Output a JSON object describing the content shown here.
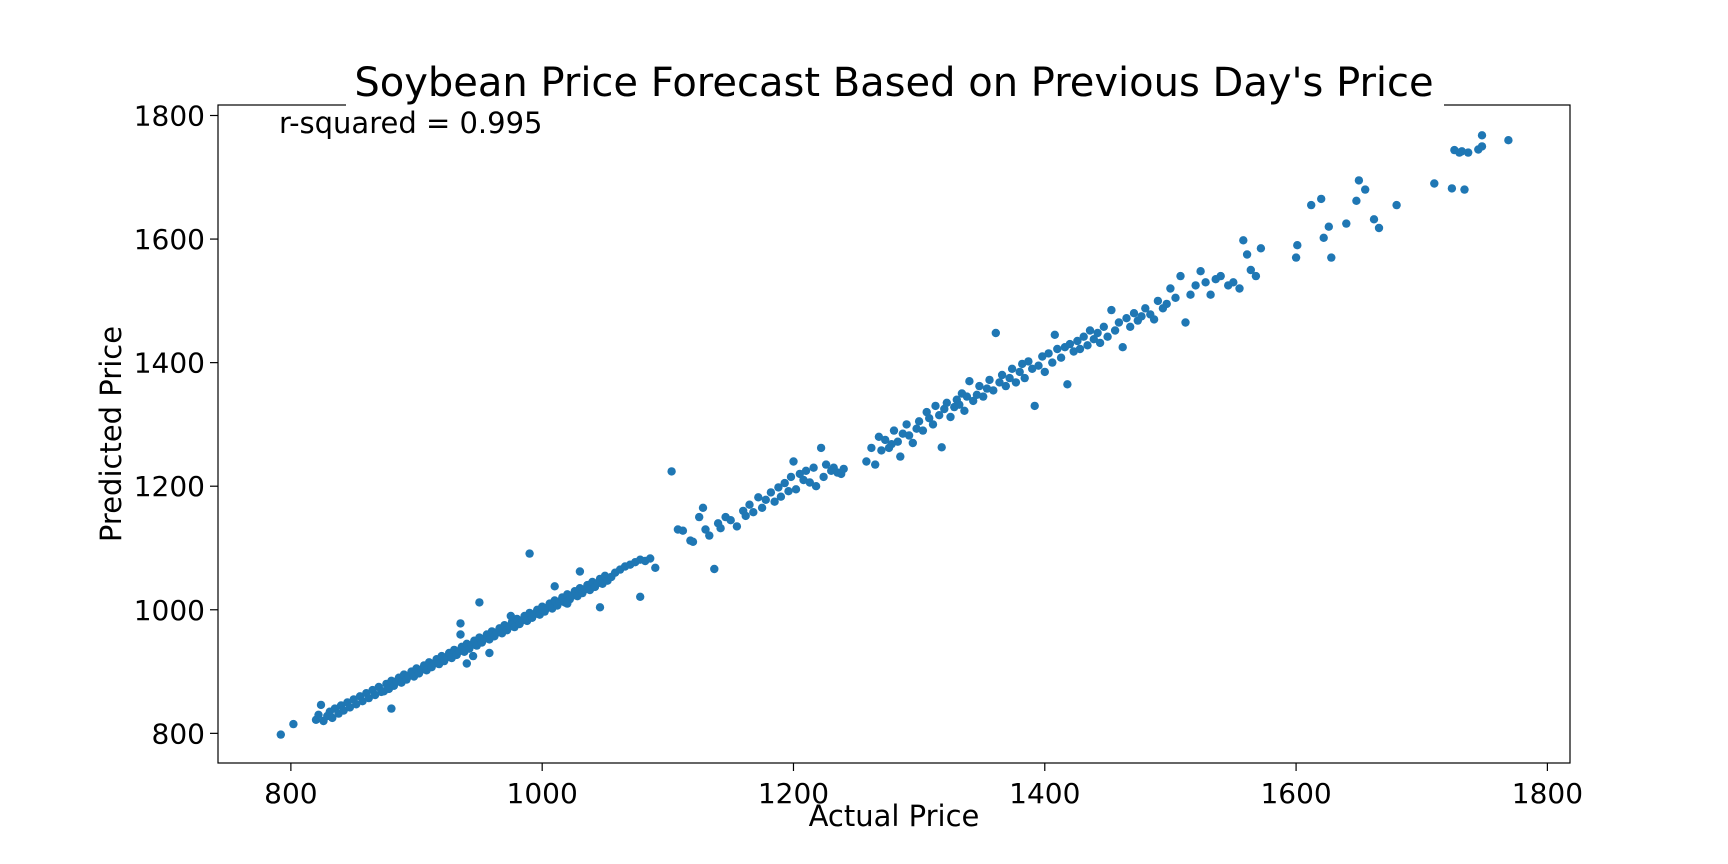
{
  "chart_data": {
    "type": "scatter",
    "title": "Soybean Price Forecast Based on Previous Day's Price",
    "xlabel": "Actual Price",
    "ylabel": "Predicted Price",
    "annotation": "r-squared = 0.995",
    "xlim": [
      742,
      1818
    ],
    "ylim": [
      752,
      1817
    ],
    "xticks": [
      800,
      1000,
      1200,
      1400,
      1600,
      1800
    ],
    "yticks": [
      800,
      1000,
      1200,
      1400,
      1600,
      1800
    ],
    "grid": false,
    "legend": "none",
    "marker_color": "#1f77b4",
    "points": [
      [
        792,
        798
      ],
      [
        802,
        815
      ],
      [
        820,
        822
      ],
      [
        822,
        830
      ],
      [
        824,
        846
      ],
      [
        826,
        820
      ],
      [
        829,
        828
      ],
      [
        831,
        835
      ],
      [
        833,
        825
      ],
      [
        835,
        840
      ],
      [
        838,
        832
      ],
      [
        840,
        845
      ],
      [
        842,
        837
      ],
      [
        845,
        850
      ],
      [
        847,
        842
      ],
      [
        850,
        855
      ],
      [
        852,
        847
      ],
      [
        855,
        860
      ],
      [
        857,
        852
      ],
      [
        860,
        865
      ],
      [
        862,
        857
      ],
      [
        865,
        870
      ],
      [
        867,
        862
      ],
      [
        870,
        875
      ],
      [
        872,
        867
      ],
      [
        874,
        868
      ],
      [
        876,
        880
      ],
      [
        878,
        872
      ],
      [
        880,
        885
      ],
      [
        882,
        877
      ],
      [
        884,
        884
      ],
      [
        886,
        890
      ],
      [
        888,
        882
      ],
      [
        890,
        895
      ],
      [
        892,
        887
      ],
      [
        894,
        893
      ],
      [
        896,
        900
      ],
      [
        898,
        892
      ],
      [
        900,
        905
      ],
      [
        902,
        897
      ],
      [
        904,
        903
      ],
      [
        906,
        910
      ],
      [
        908,
        902
      ],
      [
        910,
        915
      ],
      [
        912,
        907
      ],
      [
        914,
        913
      ],
      [
        916,
        920
      ],
      [
        918,
        912
      ],
      [
        920,
        925
      ],
      [
        922,
        917
      ],
      [
        924,
        923
      ],
      [
        926,
        930
      ],
      [
        928,
        922
      ],
      [
        930,
        935
      ],
      [
        932,
        927
      ],
      [
        934,
        933
      ],
      [
        936,
        940
      ],
      [
        938,
        932
      ],
      [
        940,
        945
      ],
      [
        942,
        937
      ],
      [
        944,
        943
      ],
      [
        946,
        950
      ],
      [
        948,
        942
      ],
      [
        950,
        955
      ],
      [
        952,
        947
      ],
      [
        954,
        953
      ],
      [
        956,
        960
      ],
      [
        958,
        952
      ],
      [
        960,
        965
      ],
      [
        962,
        957
      ],
      [
        964,
        963
      ],
      [
        966,
        970
      ],
      [
        968,
        962
      ],
      [
        970,
        975
      ],
      [
        972,
        967
      ],
      [
        974,
        973
      ],
      [
        976,
        980
      ],
      [
        978,
        972
      ],
      [
        980,
        985
      ],
      [
        982,
        977
      ],
      [
        984,
        983
      ],
      [
        986,
        990
      ],
      [
        988,
        982
      ],
      [
        990,
        995
      ],
      [
        992,
        987
      ],
      [
        994,
        993
      ],
      [
        996,
        1000
      ],
      [
        998,
        992
      ],
      [
        1000,
        1005
      ],
      [
        1002,
        997
      ],
      [
        1004,
        1003
      ],
      [
        1006,
        1010
      ],
      [
        1008,
        1002
      ],
      [
        1010,
        1015
      ],
      [
        1012,
        1007
      ],
      [
        1014,
        1013
      ],
      [
        1016,
        1020
      ],
      [
        1018,
        1012
      ],
      [
        1020,
        1025
      ],
      [
        1022,
        1017
      ],
      [
        1024,
        1023
      ],
      [
        1026,
        1030
      ],
      [
        1028,
        1022
      ],
      [
        1030,
        1035
      ],
      [
        1032,
        1027
      ],
      [
        1034,
        1033
      ],
      [
        1036,
        1040
      ],
      [
        1038,
        1032
      ],
      [
        1040,
        1045
      ],
      [
        1042,
        1037
      ],
      [
        1044,
        1043
      ],
      [
        1046,
        1050
      ],
      [
        1048,
        1042
      ],
      [
        1050,
        1055
      ],
      [
        1052,
        1047
      ],
      [
        1055,
        1053
      ],
      [
        1058,
        1060
      ],
      [
        1062,
        1065
      ],
      [
        1066,
        1070
      ],
      [
        1070,
        1073
      ],
      [
        1074,
        1077
      ],
      [
        1078,
        1081
      ],
      [
        1082,
        1079
      ],
      [
        1086,
        1083
      ],
      [
        1090,
        1068
      ],
      [
        1046,
        1004
      ],
      [
        1078,
        1021
      ],
      [
        990,
        1091
      ],
      [
        1010,
        1038
      ],
      [
        1030,
        1062
      ],
      [
        950,
        1012
      ],
      [
        935,
        978
      ],
      [
        958,
        930
      ],
      [
        945,
        925
      ],
      [
        880,
        840
      ],
      [
        935,
        960
      ],
      [
        940,
        913
      ],
      [
        1020,
        1010
      ],
      [
        1000,
        1000
      ],
      [
        975,
        990
      ],
      [
        1103,
        1224
      ],
      [
        1108,
        1130
      ],
      [
        1112,
        1128
      ],
      [
        1118,
        1112
      ],
      [
        1120,
        1110
      ],
      [
        1125,
        1150
      ],
      [
        1128,
        1165
      ],
      [
        1130,
        1130
      ],
      [
        1133,
        1120
      ],
      [
        1137,
        1066
      ],
      [
        1140,
        1140
      ],
      [
        1142,
        1132
      ],
      [
        1146,
        1150
      ],
      [
        1150,
        1145
      ],
      [
        1155,
        1135
      ],
      [
        1160,
        1160
      ],
      [
        1162,
        1152
      ],
      [
        1165,
        1170
      ],
      [
        1168,
        1158
      ],
      [
        1172,
        1182
      ],
      [
        1175,
        1165
      ],
      [
        1178,
        1178
      ],
      [
        1182,
        1190
      ],
      [
        1185,
        1175
      ],
      [
        1188,
        1198
      ],
      [
        1190,
        1183
      ],
      [
        1193,
        1205
      ],
      [
        1196,
        1192
      ],
      [
        1198,
        1215
      ],
      [
        1200,
        1240
      ],
      [
        1202,
        1195
      ],
      [
        1205,
        1220
      ],
      [
        1208,
        1210
      ],
      [
        1210,
        1225
      ],
      [
        1213,
        1206
      ],
      [
        1216,
        1230
      ],
      [
        1218,
        1200
      ],
      [
        1222,
        1262
      ],
      [
        1224,
        1215
      ],
      [
        1226,
        1235
      ],
      [
        1230,
        1225
      ],
      [
        1232,
        1230
      ],
      [
        1235,
        1222
      ],
      [
        1238,
        1220
      ],
      [
        1240,
        1228
      ],
      [
        1258,
        1240
      ],
      [
        1262,
        1262
      ],
      [
        1265,
        1235
      ],
      [
        1268,
        1280
      ],
      [
        1270,
        1258
      ],
      [
        1273,
        1275
      ],
      [
        1276,
        1262
      ],
      [
        1278,
        1268
      ],
      [
        1280,
        1290
      ],
      [
        1283,
        1272
      ],
      [
        1285,
        1248
      ],
      [
        1287,
        1285
      ],
      [
        1290,
        1300
      ],
      [
        1292,
        1282
      ],
      [
        1295,
        1270
      ],
      [
        1298,
        1293
      ],
      [
        1300,
        1305
      ],
      [
        1303,
        1290
      ],
      [
        1306,
        1320
      ],
      [
        1308,
        1310
      ],
      [
        1311,
        1300
      ],
      [
        1313,
        1330
      ],
      [
        1316,
        1315
      ],
      [
        1318,
        1263
      ],
      [
        1320,
        1325
      ],
      [
        1322,
        1335
      ],
      [
        1325,
        1312
      ],
      [
        1328,
        1328
      ],
      [
        1330,
        1340
      ],
      [
        1332,
        1332
      ],
      [
        1334,
        1350
      ],
      [
        1336,
        1322
      ],
      [
        1338,
        1345
      ],
      [
        1340,
        1370
      ],
      [
        1343,
        1338
      ],
      [
        1346,
        1348
      ],
      [
        1348,
        1362
      ],
      [
        1351,
        1345
      ],
      [
        1354,
        1358
      ],
      [
        1356,
        1372
      ],
      [
        1359,
        1355
      ],
      [
        1361,
        1448
      ],
      [
        1364,
        1368
      ],
      [
        1366,
        1380
      ],
      [
        1369,
        1362
      ],
      [
        1372,
        1375
      ],
      [
        1374,
        1390
      ],
      [
        1377,
        1368
      ],
      [
        1380,
        1385
      ],
      [
        1382,
        1398
      ],
      [
        1384,
        1375
      ],
      [
        1387,
        1402
      ],
      [
        1390,
        1390
      ],
      [
        1392,
        1330
      ],
      [
        1395,
        1395
      ],
      [
        1398,
        1410
      ],
      [
        1400,
        1385
      ],
      [
        1403,
        1415
      ],
      [
        1406,
        1400
      ],
      [
        1408,
        1445
      ],
      [
        1410,
        1422
      ],
      [
        1413,
        1408
      ],
      [
        1416,
        1425
      ],
      [
        1418,
        1365
      ],
      [
        1420,
        1430
      ],
      [
        1423,
        1418
      ],
      [
        1426,
        1435
      ],
      [
        1428,
        1422
      ],
      [
        1431,
        1442
      ],
      [
        1434,
        1428
      ],
      [
        1436,
        1452
      ],
      [
        1439,
        1438
      ],
      [
        1442,
        1448
      ],
      [
        1444,
        1432
      ],
      [
        1447,
        1458
      ],
      [
        1450,
        1442
      ],
      [
        1453,
        1485
      ],
      [
        1456,
        1452
      ],
      [
        1459,
        1465
      ],
      [
        1462,
        1425
      ],
      [
        1465,
        1472
      ],
      [
        1468,
        1458
      ],
      [
        1471,
        1480
      ],
      [
        1474,
        1468
      ],
      [
        1477,
        1475
      ],
      [
        1480,
        1488
      ],
      [
        1484,
        1478
      ],
      [
        1487,
        1470
      ],
      [
        1490,
        1500
      ],
      [
        1494,
        1488
      ],
      [
        1497,
        1495
      ],
      [
        1500,
        1520
      ],
      [
        1504,
        1505
      ],
      [
        1508,
        1540
      ],
      [
        1512,
        1465
      ],
      [
        1516,
        1510
      ],
      [
        1520,
        1525
      ],
      [
        1524,
        1548
      ],
      [
        1528,
        1530
      ],
      [
        1532,
        1510
      ],
      [
        1536,
        1535
      ],
      [
        1540,
        1540
      ],
      [
        1546,
        1525
      ],
      [
        1550,
        1530
      ],
      [
        1555,
        1520
      ],
      [
        1558,
        1598
      ],
      [
        1561,
        1575
      ],
      [
        1564,
        1550
      ],
      [
        1568,
        1540
      ],
      [
        1572,
        1585
      ],
      [
        1600,
        1570
      ],
      [
        1601,
        1590
      ],
      [
        1612,
        1655
      ],
      [
        1620,
        1665
      ],
      [
        1622,
        1602
      ],
      [
        1626,
        1620
      ],
      [
        1628,
        1570
      ],
      [
        1640,
        1625
      ],
      [
        1648,
        1662
      ],
      [
        1650,
        1695
      ],
      [
        1655,
        1680
      ],
      [
        1662,
        1632
      ],
      [
        1666,
        1618
      ],
      [
        1680,
        1655
      ],
      [
        1710,
        1690
      ],
      [
        1724,
        1682
      ],
      [
        1726,
        1744
      ],
      [
        1730,
        1740
      ],
      [
        1734,
        1680
      ],
      [
        1737,
        1740
      ],
      [
        1745,
        1745
      ],
      [
        1748,
        1768
      ],
      [
        1769,
        1760
      ],
      [
        1748,
        1750
      ],
      [
        1732,
        1742
      ]
    ]
  }
}
